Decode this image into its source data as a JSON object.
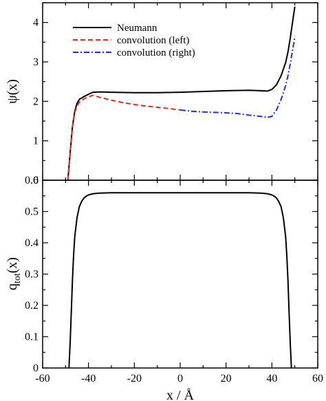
{
  "chart_data": [
    {
      "type": "line",
      "xlim": [
        -60,
        60
      ],
      "ylim": [
        0,
        4.5
      ],
      "ylabel": "ψ(x)",
      "x_ticks": [],
      "y_ticks": [
        "0",
        "1",
        "2",
        "3",
        "4"
      ],
      "legend_position": "top-left",
      "grid": false,
      "series": [
        {
          "name": "Neumann",
          "color": "#000000",
          "style": "solid",
          "x": [
            -49,
            -48,
            -47,
            -46,
            -45,
            -44,
            -42,
            -40,
            -38,
            -35,
            -30,
            -20,
            -10,
            0,
            10,
            20,
            30,
            35,
            38,
            40,
            42,
            44,
            46,
            47,
            48,
            49,
            49.5,
            50
          ],
          "y": [
            0,
            0.7,
            1.35,
            1.75,
            1.95,
            2.05,
            2.12,
            2.18,
            2.23,
            2.24,
            2.23,
            2.22,
            2.22,
            2.23,
            2.25,
            2.27,
            2.28,
            2.27,
            2.26,
            2.3,
            2.42,
            2.65,
            2.98,
            3.25,
            3.6,
            4.0,
            4.2,
            4.4
          ]
        },
        {
          "name": "convolution (left)",
          "color": "#e8291b",
          "style": "dashed",
          "x": [
            -49,
            -48,
            -47,
            -46,
            -45,
            -44,
            -42,
            -40,
            -38,
            -35,
            -30,
            -25,
            -20,
            -15,
            -10,
            -5,
            0
          ],
          "y": [
            0,
            0.7,
            1.35,
            1.72,
            1.88,
            1.98,
            2.06,
            2.12,
            2.15,
            2.1,
            2.03,
            1.97,
            1.92,
            1.88,
            1.85,
            1.82,
            1.78
          ]
        },
        {
          "name": "convolution (right)",
          "color": "#1f2cf0",
          "style": "dashdot",
          "x": [
            0,
            5,
            10,
            15,
            20,
            25,
            30,
            35,
            38,
            40,
            42,
            44,
            46,
            47,
            48,
            49,
            49.5,
            50
          ],
          "y": [
            1.78,
            1.75,
            1.73,
            1.72,
            1.71,
            1.69,
            1.65,
            1.62,
            1.59,
            1.62,
            1.78,
            2.05,
            2.4,
            2.65,
            2.95,
            3.3,
            3.45,
            3.65
          ]
        }
      ]
    },
    {
      "type": "line",
      "xlim": [
        -60,
        60
      ],
      "ylim": [
        0,
        0.6
      ],
      "xlabel": "x / Å",
      "ylabel_main": "q",
      "ylabel_sub": "tot",
      "ylabel_tail": "(x)",
      "x_ticks": [
        "-60",
        "-40",
        "-20",
        "0",
        "20",
        "40",
        "60"
      ],
      "y_ticks": [
        "0",
        "0.1",
        "0.2",
        "0.3",
        "0.4",
        "0.5",
        "0.6"
      ],
      "grid": false,
      "series": [
        {
          "color": "#000000",
          "style": "solid",
          "x": [
            -48.5,
            -48,
            -47.5,
            -47,
            -46.5,
            -46,
            -45,
            -44,
            -43,
            -42,
            -41,
            -40,
            -38,
            -35,
            -30,
            -20,
            -10,
            0,
            10,
            20,
            30,
            35,
            38,
            40,
            41,
            42,
            43,
            44,
            45,
            46,
            46.5,
            47,
            47.5,
            48,
            48.5
          ],
          "y": [
            0,
            0.08,
            0.18,
            0.28,
            0.36,
            0.42,
            0.48,
            0.515,
            0.532,
            0.543,
            0.549,
            0.553,
            0.557,
            0.559,
            0.56,
            0.56,
            0.56,
            0.56,
            0.56,
            0.56,
            0.56,
            0.559,
            0.557,
            0.553,
            0.549,
            0.543,
            0.532,
            0.515,
            0.48,
            0.42,
            0.36,
            0.28,
            0.18,
            0.08,
            0
          ]
        }
      ]
    }
  ]
}
